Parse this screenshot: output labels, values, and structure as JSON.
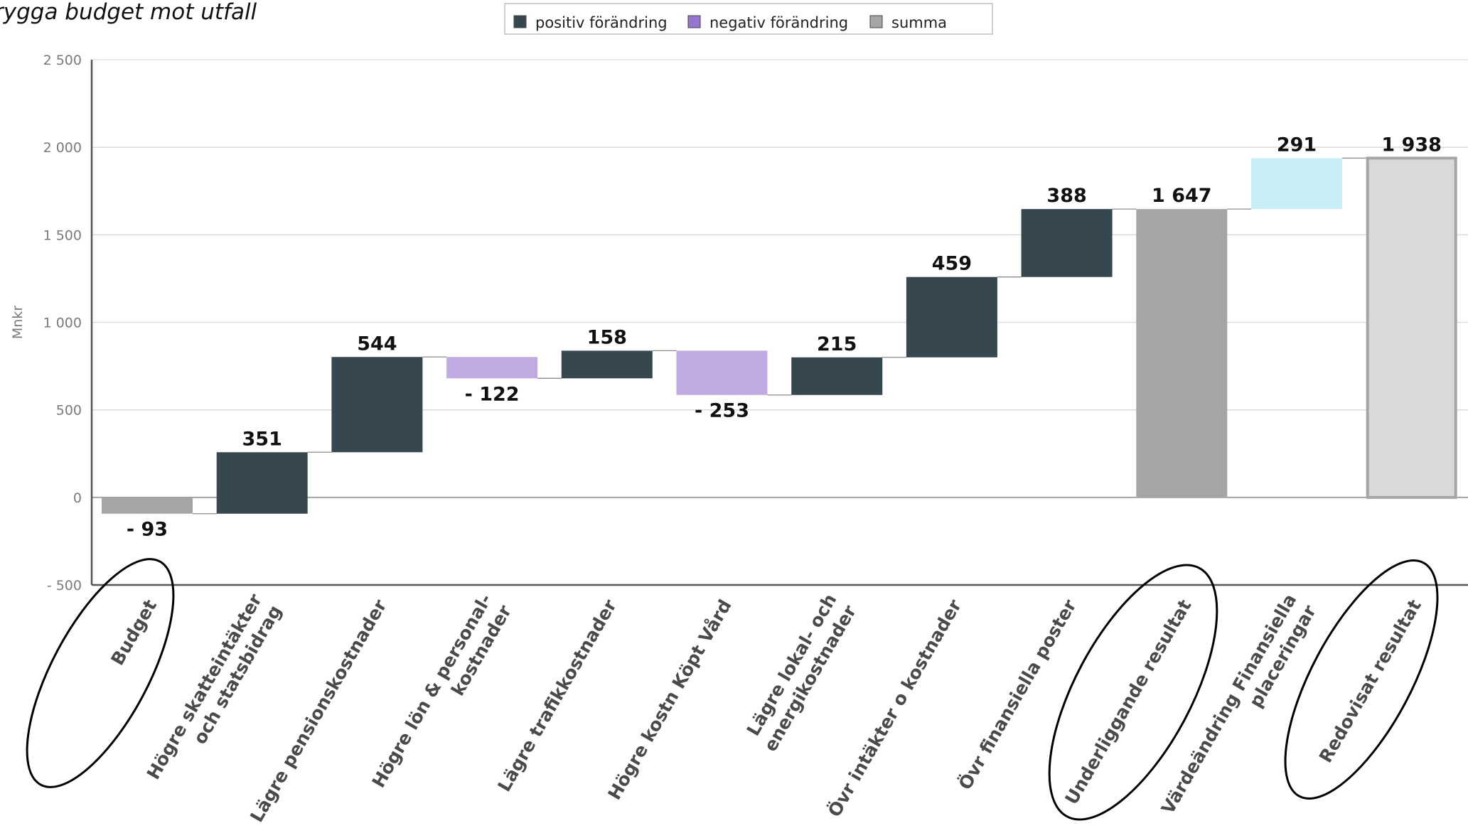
{
  "chart_data": {
    "type": "waterfall",
    "title": "rygga budget mot utfall",
    "ylabel": "Mnkr",
    "ylim": [
      -500,
      2500
    ],
    "yticks": [
      {
        "value": 2500,
        "label": "2 500"
      },
      {
        "value": 2000,
        "label": "2 000"
      },
      {
        "value": 1500,
        "label": "1 500"
      },
      {
        "value": 1000,
        "label": "1 000"
      },
      {
        "value": 500,
        "label": "500"
      },
      {
        "value": 0,
        "label": "0"
      },
      {
        "value": -500,
        "label": "- 500"
      }
    ],
    "legend": {
      "placement": "top-center",
      "items": [
        {
          "label": "positiv förändring",
          "color": "#37474f"
        },
        {
          "label": "negativ förändring",
          "color": "#9575cd"
        },
        {
          "label": "summa",
          "color": "#a5a5a5"
        }
      ]
    },
    "bars": [
      {
        "category": [
          "Budget"
        ],
        "kind": "total",
        "base": 0,
        "value": -93,
        "label": "- 93",
        "color": "#a5a5a5"
      },
      {
        "category": [
          "Högre skatteintäkter",
          "och statsbidrag"
        ],
        "kind": "positive",
        "base": -93,
        "value": 351,
        "label": "351",
        "color": "#37474f"
      },
      {
        "category": [
          "Lägre pensionskostnader"
        ],
        "kind": "positive",
        "base": 258,
        "value": 544,
        "label": "544",
        "color": "#37474f"
      },
      {
        "category": [
          "Högre lön & personal-",
          "kostnader"
        ],
        "kind": "negative",
        "base": 802,
        "value": -122,
        "label": "- 122",
        "color": "#c1aae0"
      },
      {
        "category": [
          "Lägre trafikkostnader"
        ],
        "kind": "positive",
        "base": 680,
        "value": 158,
        "label": "158",
        "color": "#37474f"
      },
      {
        "category": [
          "Högre kostn Köpt Vård"
        ],
        "kind": "negative",
        "base": 838,
        "value": -253,
        "label": "- 253",
        "color": "#c1aae0"
      },
      {
        "category": [
          "Lägre lokal- och",
          "energikostnader"
        ],
        "kind": "positive",
        "base": 585,
        "value": 215,
        "label": "215",
        "color": "#37474f"
      },
      {
        "category": [
          "Övr intäkter o kostnader"
        ],
        "kind": "positive",
        "base": 800,
        "value": 459,
        "label": "459",
        "color": "#37474f"
      },
      {
        "category": [
          "Övr finansiella poster"
        ],
        "kind": "positive",
        "base": 1259,
        "value": 388,
        "label": "388",
        "color": "#37474f"
      },
      {
        "category": [
          "Underliggande resultat"
        ],
        "kind": "total",
        "base": 0,
        "value": 1647,
        "label": "1 647",
        "color": "#a5a5a5",
        "circled": true
      },
      {
        "category": [
          "Värdeändring Finansiella",
          "placeringar"
        ],
        "kind": "positive-light",
        "base": 1647,
        "value": 291,
        "label": "291",
        "color": "#c9eef5"
      },
      {
        "category": [
          "Redovisat resultat"
        ],
        "kind": "total-outline",
        "base": 0,
        "value": 1938,
        "label": "1 938",
        "color": "#d9d9d9",
        "stroke": "#a5a5a5",
        "circled": true
      }
    ]
  }
}
